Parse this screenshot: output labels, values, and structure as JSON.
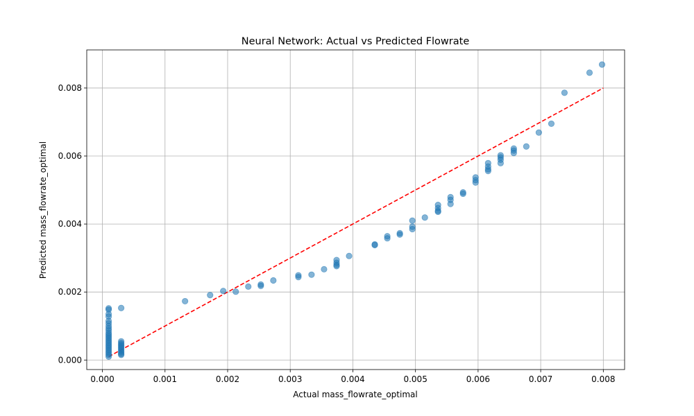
{
  "chart_data": {
    "type": "scatter",
    "title": "Neural Network: Actual vs Predicted Flowrate",
    "xlabel": "Actual mass_flowrate_optimal",
    "ylabel": "Predicted mass_flowrate_optimal",
    "xlim": [
      -0.00025,
      0.00834
    ],
    "ylim": [
      -0.00028,
      0.00912
    ],
    "xticks": [
      0.0,
      0.001,
      0.002,
      0.003,
      0.004,
      0.005,
      0.006,
      0.007,
      0.008
    ],
    "xtick_labels": [
      "0.000",
      "0.001",
      "0.002",
      "0.003",
      "0.004",
      "0.005",
      "0.006",
      "0.007",
      "0.008"
    ],
    "yticks": [
      0.0,
      0.002,
      0.004,
      0.006,
      0.008
    ],
    "ytick_labels": [
      "0.000",
      "0.002",
      "0.004",
      "0.006",
      "0.008"
    ],
    "grid": true,
    "point_color": "#1f77b4",
    "point_alpha": 0.55,
    "reference_line": {
      "style": "dashed",
      "color": "#ff0000",
      "from": [
        0.0001,
        0.0001
      ],
      "to": [
        0.008,
        0.008
      ]
    },
    "points": [
      [
        0.0001,
        0.00152
      ],
      [
        0.0001,
        0.00148
      ],
      [
        0.0001,
        0.00135
      ],
      [
        0.0001,
        0.00128
      ],
      [
        0.0001,
        0.00115
      ],
      [
        0.0001,
        0.00108
      ],
      [
        0.0001,
        0.001
      ],
      [
        0.0001,
        0.00093
      ],
      [
        0.0001,
        0.00087
      ],
      [
        0.0001,
        0.0008
      ],
      [
        0.0001,
        0.00075
      ],
      [
        0.0001,
        0.0007
      ],
      [
        0.0001,
        0.00065
      ],
      [
        0.0001,
        0.0006
      ],
      [
        0.0001,
        0.00055
      ],
      [
        0.0001,
        0.0005
      ],
      [
        0.0001,
        0.00045
      ],
      [
        0.0001,
        0.0004
      ],
      [
        0.0001,
        0.00035
      ],
      [
        0.0001,
        0.0003
      ],
      [
        0.0001,
        0.00025
      ],
      [
        0.0001,
        0.0002
      ],
      [
        0.0001,
        0.00015
      ],
      [
        0.0001,
        0.0001
      ],
      [
        0.0003,
        0.00153
      ],
      [
        0.0003,
        0.00055
      ],
      [
        0.0003,
        0.0005
      ],
      [
        0.0003,
        0.00046
      ],
      [
        0.0003,
        0.00042
      ],
      [
        0.0003,
        0.00038
      ],
      [
        0.0003,
        0.00034
      ],
      [
        0.0003,
        0.0003
      ],
      [
        0.0003,
        0.00026
      ],
      [
        0.0003,
        0.00022
      ],
      [
        0.0003,
        0.00018
      ],
      [
        0.0003,
        0.00015
      ],
      [
        0.00132,
        0.00173
      ],
      [
        0.00172,
        0.00191
      ],
      [
        0.00193,
        0.00203
      ],
      [
        0.00213,
        0.00201
      ],
      [
        0.00233,
        0.00216
      ],
      [
        0.00253,
        0.00222
      ],
      [
        0.00253,
        0.00218
      ],
      [
        0.00273,
        0.00234
      ],
      [
        0.00313,
        0.00249
      ],
      [
        0.00313,
        0.00244
      ],
      [
        0.00334,
        0.00251
      ],
      [
        0.00354,
        0.00267
      ],
      [
        0.00374,
        0.00294
      ],
      [
        0.00374,
        0.00286
      ],
      [
        0.00374,
        0.0028
      ],
      [
        0.00374,
        0.00276
      ],
      [
        0.00394,
        0.00306
      ],
      [
        0.00435,
        0.0034
      ],
      [
        0.00435,
        0.00338
      ],
      [
        0.00455,
        0.00364
      ],
      [
        0.00455,
        0.00358
      ],
      [
        0.00475,
        0.00373
      ],
      [
        0.00475,
        0.00369
      ],
      [
        0.00495,
        0.0041
      ],
      [
        0.00495,
        0.00392
      ],
      [
        0.00495,
        0.00385
      ],
      [
        0.00515,
        0.00419
      ],
      [
        0.00536,
        0.00456
      ],
      [
        0.00536,
        0.00447
      ],
      [
        0.00536,
        0.00439
      ],
      [
        0.00536,
        0.00436
      ],
      [
        0.00556,
        0.00479
      ],
      [
        0.00556,
        0.00471
      ],
      [
        0.00556,
        0.00459
      ],
      [
        0.00576,
        0.00493
      ],
      [
        0.00576,
        0.00489
      ],
      [
        0.00596,
        0.00537
      ],
      [
        0.00596,
        0.00529
      ],
      [
        0.00596,
        0.00522
      ],
      [
        0.00616,
        0.00579
      ],
      [
        0.00616,
        0.00569
      ],
      [
        0.00616,
        0.00561
      ],
      [
        0.00616,
        0.00556
      ],
      [
        0.00636,
        0.00602
      ],
      [
        0.00636,
        0.00596
      ],
      [
        0.00636,
        0.00589
      ],
      [
        0.00636,
        0.00579
      ],
      [
        0.00657,
        0.00622
      ],
      [
        0.00657,
        0.00616
      ],
      [
        0.00657,
        0.00609
      ],
      [
        0.00677,
        0.00628
      ],
      [
        0.00697,
        0.00669
      ],
      [
        0.00717,
        0.00695
      ],
      [
        0.00738,
        0.00786
      ],
      [
        0.00778,
        0.00845
      ],
      [
        0.00798,
        0.00869
      ]
    ]
  }
}
